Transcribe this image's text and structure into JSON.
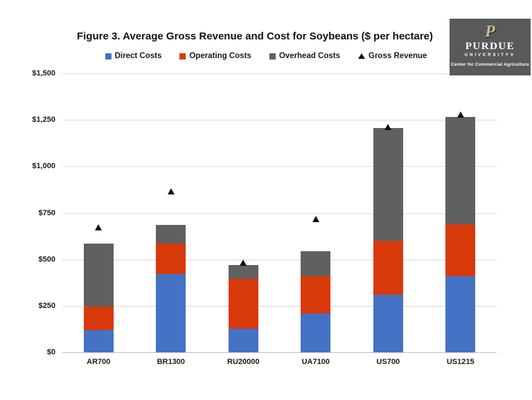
{
  "title": "Figure 3. Average Gross Revenue and Cost for Soybeans ($ per hectare)",
  "legend": [
    {
      "label": "Direct Costs",
      "marker": "square",
      "color": "#4472C4"
    },
    {
      "label": "Operating Costs",
      "marker": "square",
      "color": "#D8390B"
    },
    {
      "label": "Overhead Costs",
      "marker": "square",
      "color": "#5F6062"
    },
    {
      "label": "Gross Revenue",
      "marker": "triangle",
      "color": "#111111"
    }
  ],
  "logo": {
    "monogram": "P",
    "name": "PURDUE",
    "subname": "UNIVERSITY®",
    "unit": "Center for Commercial Agriculture",
    "bg_color": "#58595B",
    "gold_color": "#CFB991"
  },
  "chart_data": {
    "type": "bar",
    "stacked": true,
    "title": "Figure 3. Average Gross Revenue and Cost for Soybeans ($ per hectare)",
    "categories": [
      "AR700",
      "BR1300",
      "RU20000",
      "UA7100",
      "US700",
      "US1215"
    ],
    "series": [
      {
        "name": "Direct Costs",
        "color": "#4472C4",
        "values": [
          120,
          420,
          125,
          210,
          310,
          410
        ]
      },
      {
        "name": "Operating Costs",
        "color": "#D8390B",
        "values": [
          125,
          165,
          270,
          200,
          290,
          280
        ]
      },
      {
        "name": "Overhead Costs",
        "color": "#5F6062",
        "values": [
          340,
          100,
          75,
          135,
          605,
          575
        ]
      }
    ],
    "markers": {
      "name": "Gross Revenue",
      "shape": "triangle",
      "color": "#111111",
      "values": [
        670,
        865,
        480,
        715,
        1210,
        1275
      ]
    },
    "ylim": [
      0,
      1500
    ],
    "ytick_step": 250,
    "ytick_labels": [
      "$0",
      "$250",
      "$500",
      "$750",
      "$1,000",
      "$1,250",
      "$1,500"
    ],
    "xlabel": "",
    "ylabel": "",
    "grid": true,
    "legend_position": "top",
    "gridline_color": "#d9d9d9",
    "axis_color": "#bfbfbf"
  }
}
